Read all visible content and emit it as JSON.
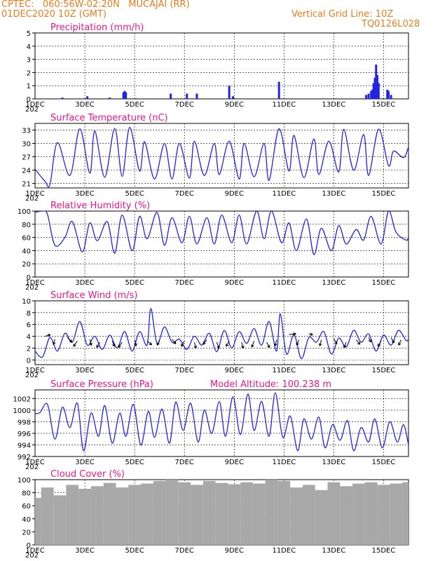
{
  "header": {
    "line1": "CPTEC:   060:56W-02:20N   MUCAJAI (RR)",
    "line2": "01DEC2020 10Z (GMT)",
    "grid_note": "Vertical Grid Line: 10Z",
    "code": "TQ0126L028"
  },
  "colors": {
    "series": "#2424e0",
    "title": "#ee1490",
    "header": "#e87d1e",
    "cloud": "#a8a8a8",
    "arrow": "#000000"
  },
  "x_axis": {
    "range_days": [
      1.0,
      16.0
    ],
    "tick_labels": [
      "1DEC",
      "3DEC",
      "5DEC",
      "7DEC",
      "9DEC",
      "11DEC",
      "13DEC",
      "15DEC"
    ],
    "tick_days": [
      1,
      3,
      5,
      7,
      9,
      11,
      13,
      15
    ],
    "year_stub": "202"
  },
  "chart_data": [
    {
      "type": "bar",
      "title": "Precipitation (mm/h)",
      "ylim": [
        0,
        5
      ],
      "yticks": [
        "0",
        "1",
        "2",
        "3",
        "4",
        "5"
      ],
      "x": [
        2.1,
        3.1,
        4.0,
        4.55,
        4.6,
        4.65,
        6.45,
        7.1,
        7.5,
        8.8,
        8.95,
        10.8,
        14.3,
        14.4,
        14.5,
        14.55,
        14.6,
        14.65,
        14.7,
        14.75,
        14.8,
        15.15,
        15.2,
        15.3
      ],
      "values": [
        0.1,
        0.2,
        0.1,
        0.5,
        0.6,
        0.5,
        0.4,
        0.4,
        0.4,
        1.0,
        0.2,
        1.3,
        0.3,
        0.4,
        0.6,
        0.7,
        1.2,
        1.6,
        2.6,
        1.8,
        1.2,
        0.7,
        0.6,
        0.3
      ]
    },
    {
      "type": "line",
      "title": "Surface Temperature (nC)",
      "ylim": [
        20,
        34.5
      ],
      "yticks": [
        "21",
        "24",
        "27",
        "30",
        "33"
      ],
      "tick_values": [
        21,
        24,
        27,
        30,
        33
      ],
      "x": [
        1.0,
        1.4,
        1.6,
        1.9,
        2.4,
        2.8,
        3.2,
        3.4,
        3.8,
        4.2,
        4.5,
        4.8,
        5.2,
        5.4,
        5.8,
        6.2,
        6.5,
        6.8,
        7.2,
        7.4,
        7.8,
        8.2,
        8.4,
        8.8,
        9.2,
        9.4,
        9.8,
        10.2,
        10.4,
        10.8,
        11.2,
        11.4,
        11.8,
        12.2,
        12.4,
        12.8,
        13.2,
        13.4,
        13.8,
        14.2,
        14.4,
        14.8,
        15.2,
        15.4,
        15.8,
        16.0
      ],
      "values": [
        24.2,
        21.5,
        20.8,
        30.2,
        22.8,
        33.3,
        23.3,
        32.8,
        22.4,
        33.4,
        22.6,
        33.6,
        23.8,
        30.4,
        22.0,
        30.0,
        22.0,
        30.0,
        22.2,
        30.5,
        22.8,
        30.0,
        23.0,
        30.5,
        22.0,
        30.0,
        22.5,
        30.0,
        21.7,
        33.3,
        23.8,
        31.8,
        22.3,
        31.0,
        23.0,
        30.5,
        23.6,
        33.2,
        24.0,
        32.0,
        22.8,
        33.2,
        25.0,
        28.3,
        26.8,
        29.2
      ]
    },
    {
      "type": "line",
      "title": "Relative Humidity (%)",
      "ylim": [
        0,
        100
      ],
      "yticks": [
        "0",
        "20",
        "40",
        "60",
        "80",
        "100"
      ],
      "tick_values": [
        0,
        20,
        40,
        60,
        80,
        100
      ],
      "x": [
        1.0,
        1.3,
        1.5,
        1.8,
        2.2,
        2.5,
        2.9,
        3.2,
        3.5,
        3.9,
        4.2,
        4.5,
        4.9,
        5.2,
        5.5,
        5.9,
        6.2,
        6.5,
        6.9,
        7.2,
        7.5,
        7.9,
        8.2,
        8.5,
        8.9,
        9.2,
        9.5,
        9.9,
        10.2,
        10.5,
        10.9,
        11.2,
        11.5,
        11.9,
        12.2,
        12.5,
        12.9,
        13.2,
        13.5,
        13.9,
        14.2,
        14.5,
        14.9,
        15.2,
        15.5,
        15.9,
        16.0
      ],
      "values": [
        98,
        100,
        95,
        48,
        60,
        84,
        38,
        82,
        55,
        84,
        36,
        94,
        40,
        92,
        58,
        98,
        48,
        90,
        52,
        92,
        50,
        90,
        50,
        94,
        52,
        94,
        50,
        100,
        58,
        100,
        52,
        82,
        40,
        88,
        34,
        74,
        40,
        78,
        50,
        72,
        56,
        92,
        50,
        100,
        68,
        56,
        60
      ]
    },
    {
      "type": "line",
      "title": "Surface Wind (m/s)",
      "ylim": [
        -0.8,
        10
      ],
      "yticks": [
        "0",
        "2",
        "4",
        "6",
        "8",
        "10"
      ],
      "tick_values": [
        0,
        2,
        4,
        6,
        8,
        10
      ],
      "x": [
        1.0,
        1.3,
        1.6,
        1.9,
        2.2,
        2.5,
        2.8,
        3.1,
        3.4,
        3.7,
        4.0,
        4.3,
        4.6,
        4.9,
        5.2,
        5.5,
        5.65,
        5.9,
        6.2,
        6.5,
        6.8,
        7.1,
        7.4,
        7.7,
        8.0,
        8.3,
        8.6,
        8.9,
        9.2,
        9.5,
        9.8,
        10.1,
        10.4,
        10.7,
        10.85,
        11.1,
        11.4,
        11.7,
        12.0,
        12.3,
        12.6,
        12.9,
        13.2,
        13.5,
        13.8,
        14.1,
        14.4,
        14.7,
        15.0,
        15.3,
        15.6,
        15.9,
        16.0
      ],
      "values": [
        1.5,
        0.5,
        3.8,
        1.5,
        4.5,
        3.0,
        6.5,
        2.5,
        4.0,
        1.8,
        4.2,
        2.0,
        4.8,
        1.5,
        4.8,
        2.5,
        8.7,
        2.8,
        5.6,
        3.0,
        3.5,
        1.8,
        4.0,
        2.5,
        4.5,
        1.4,
        5.0,
        2.0,
        4.8,
        2.8,
        5.3,
        2.5,
        6.5,
        1.5,
        7.8,
        1.0,
        4.3,
        0.2,
        3.8,
        3.0,
        4.8,
        1.0,
        3.7,
        2.2,
        5.0,
        3.0,
        4.4,
        1.5,
        4.2,
        2.5,
        5.0,
        3.3,
        3.5
      ],
      "arrow_x": [
        1.4,
        1.8,
        2.3,
        2.7,
        3.2,
        3.6,
        4.1,
        4.5,
        5.0,
        5.5,
        6.0,
        6.5,
        7.0,
        7.4,
        7.9,
        8.3,
        8.8,
        9.3,
        9.8,
        10.3,
        10.7,
        11.2,
        11.6,
        12.0,
        12.5,
        13.0,
        13.5,
        13.9,
        14.4,
        14.9,
        15.3,
        15.7
      ],
      "arrow_u": [
        0.7,
        -0.2,
        0.6,
        -0.5,
        0.2,
        -0.4,
        0.3,
        -0.5,
        0.2,
        0.6,
        -0.3,
        0.5,
        -0.4,
        0.2,
        -0.5,
        0.3,
        -0.4,
        0.2,
        -0.3,
        0.4,
        -0.2,
        0.9,
        -0.3,
        0.5,
        -0.2,
        0.4,
        -0.3,
        0.5,
        0.3,
        -0.4,
        0.4,
        -0.3
      ],
      "arrow_v": [
        -0.2,
        0.7,
        0.6,
        0.7,
        0.8,
        0.7,
        0.7,
        0.7,
        0.8,
        0.5,
        0.7,
        0.6,
        0.7,
        0.8,
        0.6,
        0.8,
        0.7,
        0.8,
        0.8,
        0.7,
        0.8,
        -0.1,
        0.7,
        0.1,
        0.8,
        0.7,
        0.7,
        0.6,
        0.6,
        0.7,
        0.7,
        0.7
      ],
      "arrow_y": [
        4.0,
        3.5,
        3.8,
        3.2,
        3.5,
        3.0,
        3.2,
        3.0,
        3.4,
        3.2,
        3.4,
        3.5,
        3.2,
        3.0,
        3.4,
        3.0,
        3.2,
        3.0,
        3.2,
        3.0,
        3.4,
        4.3,
        3.4,
        4.4,
        3.4,
        3.6,
        3.0,
        3.4,
        3.8,
        3.2,
        3.8,
        3.4
      ]
    },
    {
      "type": "line",
      "title": "Surface Pressure (hPa)",
      "subtitle": "Model Altitude: 100.238  m",
      "ylim": [
        992,
        1003.5
      ],
      "yticks": [
        "992",
        "994",
        "996",
        "998",
        "1000",
        "1002"
      ],
      "tick_values": [
        992,
        994,
        996,
        998,
        1000,
        1002
      ],
      "x": [
        1.0,
        1.2,
        1.5,
        1.8,
        2.1,
        2.4,
        2.7,
        2.95,
        3.25,
        3.55,
        3.8,
        4.1,
        4.4,
        4.65,
        4.95,
        5.25,
        5.55,
        5.8,
        6.1,
        6.4,
        6.65,
        6.95,
        7.25,
        7.55,
        7.8,
        8.1,
        8.4,
        8.65,
        8.95,
        9.25,
        9.55,
        9.8,
        10.1,
        10.4,
        10.65,
        10.95,
        11.25,
        11.55,
        11.8,
        12.1,
        12.4,
        12.65,
        12.95,
        13.25,
        13.55,
        13.8,
        14.1,
        14.4,
        14.65,
        14.95,
        15.25,
        15.55,
        15.8,
        16.0
      ],
      "values": [
        999.4,
        999.6,
        1001.0,
        995.0,
        1000.5,
        997.0,
        1001.2,
        993.0,
        999.5,
        995.5,
        1000.8,
        994.3,
        999.5,
        995.5,
        1001.0,
        994.0,
        999.8,
        995.3,
        1000.2,
        994.3,
        1001.4,
        996.5,
        1001.2,
        994.5,
        1000.0,
        996.0,
        1001.5,
        995.5,
        1002.3,
        995.8,
        1002.8,
        996.5,
        1001.5,
        995.5,
        1003.0,
        995.3,
        999.0,
        993.0,
        998.5,
        995.0,
        998.8,
        993.5,
        997.5,
        994.8,
        998.2,
        993.0,
        997.0,
        994.5,
        998.5,
        993.5,
        998.0,
        994.5,
        997.5,
        994.0
      ]
    },
    {
      "type": "bar",
      "title": "Cloud Cover (%)",
      "ylim": [
        0,
        100
      ],
      "yticks": [
        "0",
        "20",
        "40",
        "60",
        "80",
        "100"
      ],
      "x": [
        1.0,
        1.5,
        2.0,
        2.5,
        3.0,
        3.5,
        4.0,
        4.5,
        5.0,
        5.5,
        6.0,
        6.5,
        7.0,
        7.5,
        8.0,
        8.5,
        9.0,
        9.5,
        10.0,
        10.5,
        11.0,
        11.5,
        12.0,
        12.5,
        13.0,
        13.5,
        14.0,
        14.5,
        15.0,
        15.5,
        16.0
      ],
      "values": [
        72,
        88,
        76,
        92,
        86,
        90,
        95,
        88,
        92,
        94,
        98,
        100,
        96,
        92,
        98,
        95,
        93,
        96,
        94,
        100,
        98,
        88,
        92,
        84,
        96,
        90,
        94,
        96,
        92,
        94,
        96
      ]
    }
  ]
}
